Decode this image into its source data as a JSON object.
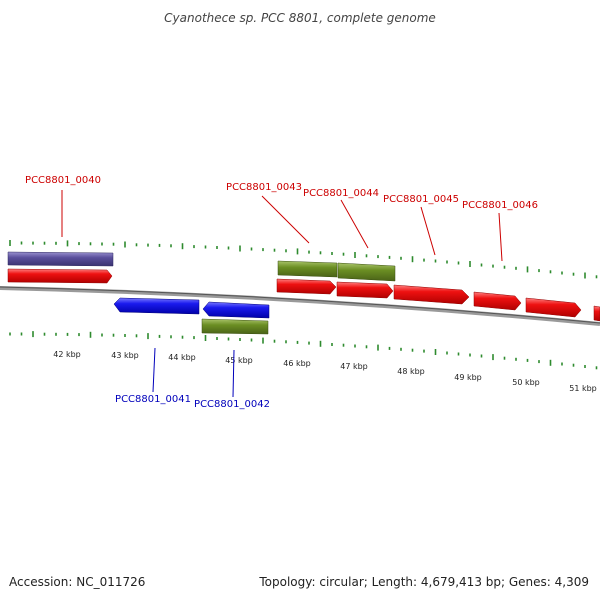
{
  "title": "Cyanothece sp. PCC 8801, complete genome",
  "footer": {
    "accession": "Accession: NC_011726",
    "summary": "Topology: circular; Length: 4,679,413 bp; Genes: 4,309"
  },
  "colors": {
    "forward_gene": "#ee1111",
    "reverse_gene": "#1a1aee",
    "feature_green": "#6b8e23",
    "feature_purple": "#5a4f9c",
    "backbone": "#8a8a8a",
    "tick": "#2e8b2e",
    "label_forward": "#cc0000",
    "label_reverse": "#0000bb"
  },
  "kbp_labels": [
    "42 kbp",
    "43 kbp",
    "44 kbp",
    "45 kbp",
    "46 kbp",
    "47 kbp",
    "48 kbp",
    "49 kbp",
    "50 kbp",
    "51 kbp"
  ],
  "forward_labels": [
    "PCC8801_0040",
    "PCC8801_0043",
    "PCC8801_0044",
    "PCC8801_0045",
    "PCC8801_0046"
  ],
  "reverse_labels": [
    "PCC8801_0041",
    "PCC8801_0042"
  ]
}
